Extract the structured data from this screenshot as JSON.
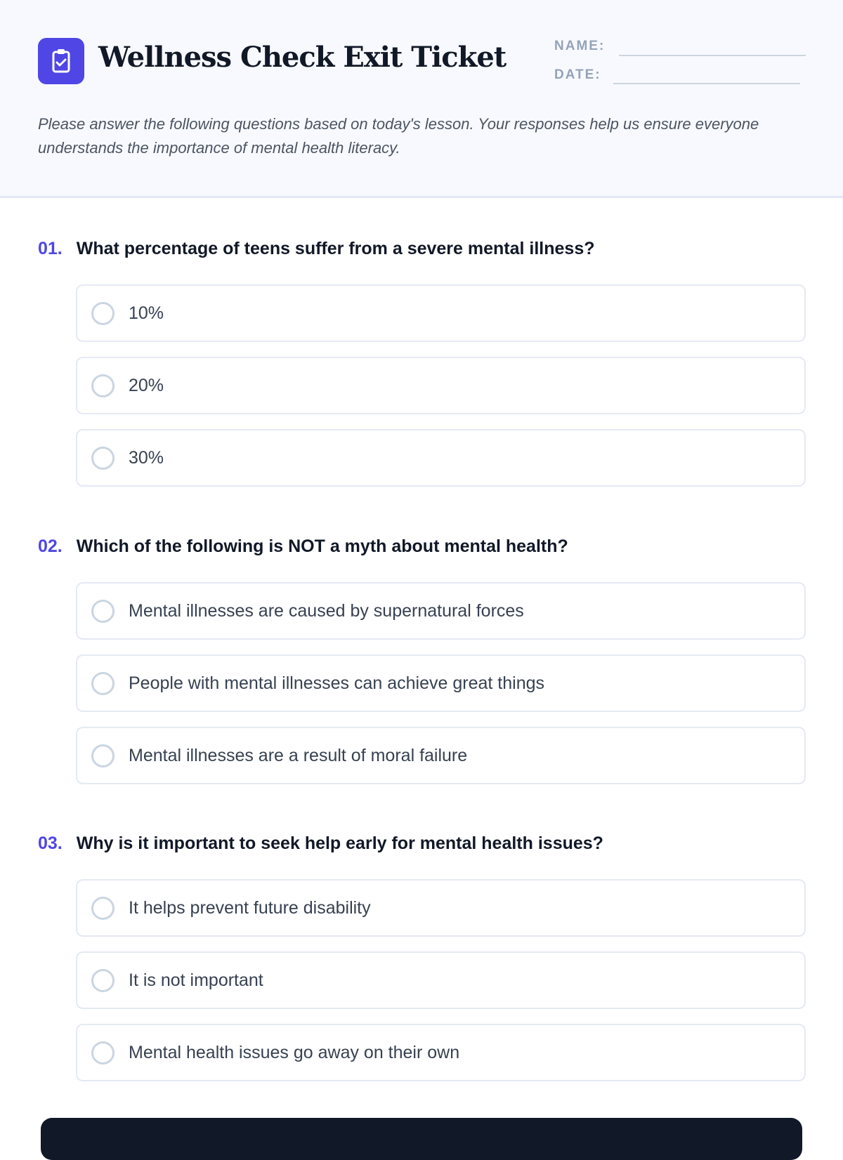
{
  "header": {
    "title": "Wellness Check Exit Ticket",
    "icon": "clipboard-check-icon",
    "name_label": "NAME:",
    "date_label": "DATE:",
    "intro": "Please answer the following questions based on today's lesson. Your responses help us ensure everyone understands the importance of mental health literacy."
  },
  "colors": {
    "accent": "#4f46e5",
    "text": "#111827"
  },
  "questions": [
    {
      "num": "01.",
      "text": "What percentage of teens suffer from a severe mental illness?",
      "options": [
        "10%",
        "20%",
        "30%"
      ]
    },
    {
      "num": "02.",
      "text": "Which of the following is NOT a myth about mental health?",
      "options": [
        "Mental illnesses are caused by supernatural forces",
        "People with mental illnesses can achieve great things",
        "Mental illnesses are a result of moral failure"
      ]
    },
    {
      "num": "03.",
      "text": "Why is it important to seek help early for mental health issues?",
      "options": [
        "It helps prevent future disability",
        "It is not important",
        "Mental health issues go away on their own"
      ]
    }
  ]
}
